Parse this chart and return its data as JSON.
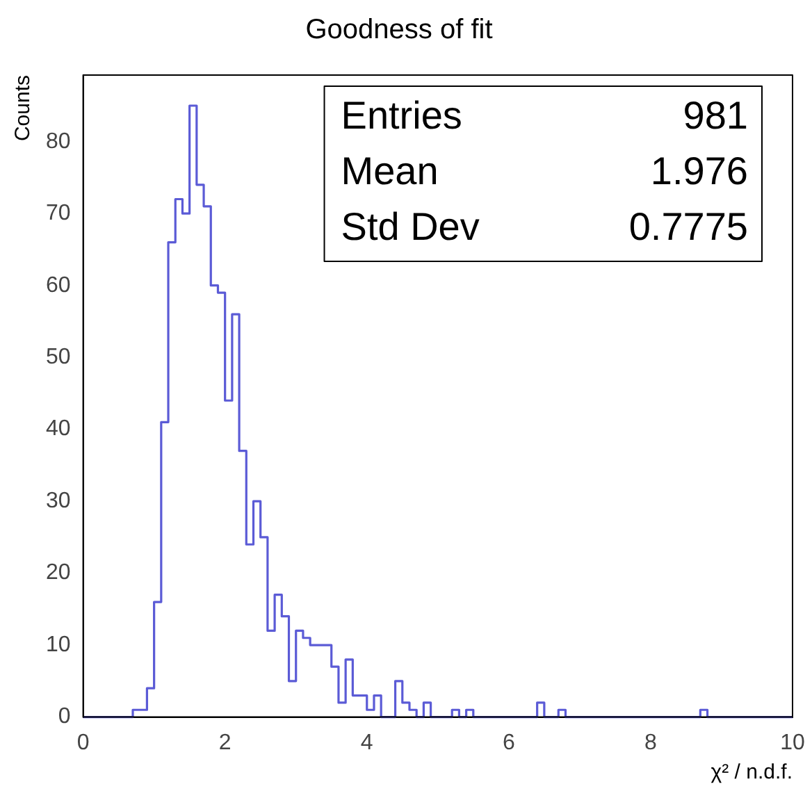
{
  "chart_data": {
    "type": "histogram",
    "title": "Goodness of fit",
    "xlabel": "χ² / n.d.f.",
    "ylabel": "Counts",
    "bins": [
      0,
      0.1,
      0.2,
      0.3,
      0.4,
      0.5,
      0.6,
      0.7,
      0.8,
      0.9,
      1,
      1.1,
      1.2,
      1.3,
      1.4,
      1.5,
      1.6,
      1.7,
      1.8,
      1.9,
      2,
      2.1,
      2.2,
      2.3,
      2.4,
      2.5,
      2.6,
      2.7,
      2.8,
      2.9,
      3,
      3.1,
      3.2,
      3.3,
      3.4,
      3.5,
      3.6,
      3.7,
      3.8,
      3.9,
      4,
      4.1,
      4.2,
      4.3,
      4.4,
      4.5,
      4.6,
      4.7,
      4.8,
      4.9,
      5,
      5.1,
      5.2,
      5.3,
      5.4,
      5.5,
      5.6,
      5.7,
      5.8,
      5.9,
      6,
      6.1,
      6.2,
      6.3,
      6.4,
      6.5,
      6.6,
      6.7,
      6.8,
      6.9,
      7,
      7.1,
      7.2,
      7.3,
      7.4,
      7.5,
      7.6,
      7.7,
      7.8,
      7.9,
      8,
      8.1,
      8.2,
      8.3,
      8.4,
      8.5,
      8.6,
      8.7,
      8.8,
      8.9,
      9,
      9.1,
      9.2,
      9.3,
      9.4,
      9.5,
      9.6,
      9.7,
      9.8,
      9.9,
      10
    ],
    "values": [
      0,
      0,
      0,
      0,
      0,
      0,
      0,
      1,
      1,
      4,
      16,
      41,
      66,
      72,
      70,
      85,
      74,
      71,
      60,
      59,
      44,
      56,
      37,
      24,
      30,
      25,
      12,
      17,
      14,
      5,
      12,
      11,
      10,
      10,
      10,
      7,
      2,
      8,
      3,
      3,
      1,
      3,
      0,
      0,
      5,
      2,
      1,
      0,
      2,
      0,
      0,
      0,
      1,
      0,
      1,
      0,
      0,
      0,
      0,
      0,
      0,
      0,
      0,
      0,
      2,
      0,
      0,
      1,
      0,
      0,
      0,
      0,
      0,
      0,
      0,
      0,
      0,
      0,
      0,
      0,
      0,
      0,
      0,
      0,
      0,
      0,
      0,
      1,
      0,
      0,
      0,
      0,
      0,
      0,
      0,
      0,
      0,
      0,
      0,
      0
    ],
    "color": "#5b5bd6",
    "xlim": [
      0,
      10
    ],
    "xticks": [
      0,
      2,
      4,
      6,
      8,
      10
    ],
    "ylim": [
      0,
      89.25
    ],
    "yticks": [
      0,
      10,
      20,
      30,
      40,
      50,
      60,
      70,
      80
    ],
    "annotations": [
      "Entries",
      "981",
      "Mean",
      "1.976",
      "Std Dev",
      "0.7775"
    ]
  }
}
